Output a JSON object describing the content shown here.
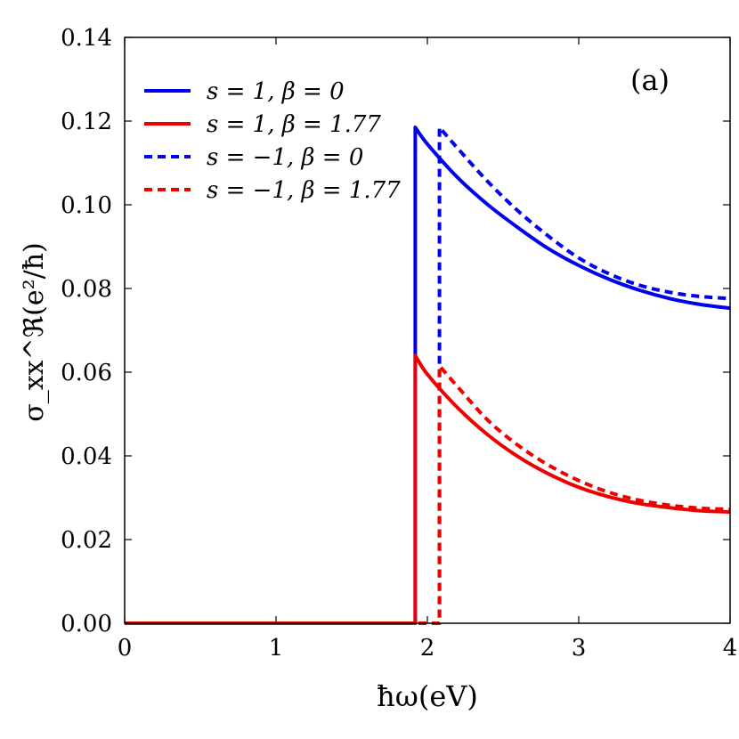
{
  "chart_data": {
    "type": "line",
    "xlabel": "ħω(eV)",
    "ylabel": "σ_xx^ℜ(e²/ħ)",
    "panel_label": "(a)",
    "xlim": [
      0,
      4
    ],
    "ylim": [
      0,
      0.14
    ],
    "x_ticks": [
      0,
      1,
      2,
      3,
      4
    ],
    "x_tick_labels": [
      "0",
      "1",
      "2",
      "3",
      "4"
    ],
    "y_ticks": [
      0,
      0.02,
      0.04,
      0.06,
      0.08,
      0.1,
      0.12,
      0.14
    ],
    "y_tick_labels": [
      "0.00",
      "0.02",
      "0.04",
      "0.06",
      "0.08",
      "0.10",
      "0.12",
      "0.14"
    ],
    "grid": false,
    "legend_position": "top-left",
    "series": [
      {
        "name": "s = 1, β = 0",
        "color": "#0000ee",
        "dash": "solid",
        "x": [
          0,
          1.92,
          1.92,
          2.0,
          2.2,
          2.4,
          2.6,
          2.8,
          3.0,
          3.2,
          3.4,
          3.6,
          3.8,
          4.0
        ],
        "y": [
          0.0,
          0.0,
          0.1185,
          0.1145,
          0.1065,
          0.1,
          0.0945,
          0.0895,
          0.0855,
          0.0822,
          0.0796,
          0.0776,
          0.0762,
          0.0753
        ]
      },
      {
        "name": "s = 1, β = 1.77",
        "color": "#ee0000",
        "dash": "solid",
        "x": [
          0,
          1.92,
          1.92,
          2.0,
          2.2,
          2.4,
          2.6,
          2.8,
          3.0,
          3.2,
          3.4,
          3.6,
          3.8,
          4.0
        ],
        "y": [
          0.0,
          0.0,
          0.064,
          0.0595,
          0.0515,
          0.045,
          0.0398,
          0.0357,
          0.0325,
          0.0302,
          0.0286,
          0.0276,
          0.0269,
          0.0266
        ]
      },
      {
        "name": "s = −1, β = 0",
        "color": "#0000ee",
        "dash": "dashed",
        "x": [
          0,
          2.08,
          2.08,
          2.2,
          2.4,
          2.6,
          2.8,
          3.0,
          3.2,
          3.4,
          3.6,
          3.8,
          4.0
        ],
        "y": [
          0.0,
          0.0,
          0.1185,
          0.1135,
          0.1055,
          0.0985,
          0.0925,
          0.0873,
          0.0835,
          0.0808,
          0.0791,
          0.0781,
          0.0776
        ]
      },
      {
        "name": "s = −1, β = 1.77",
        "color": "#ee0000",
        "dash": "dashed",
        "x": [
          0,
          2.08,
          2.08,
          2.2,
          2.4,
          2.6,
          2.8,
          3.0,
          3.2,
          3.4,
          3.6,
          3.8,
          4.0
        ],
        "y": [
          0.0,
          0.0,
          0.0615,
          0.0565,
          0.0485,
          0.0425,
          0.0378,
          0.0341,
          0.0313,
          0.0294,
          0.0282,
          0.0275,
          0.0272
        ]
      }
    ]
  }
}
